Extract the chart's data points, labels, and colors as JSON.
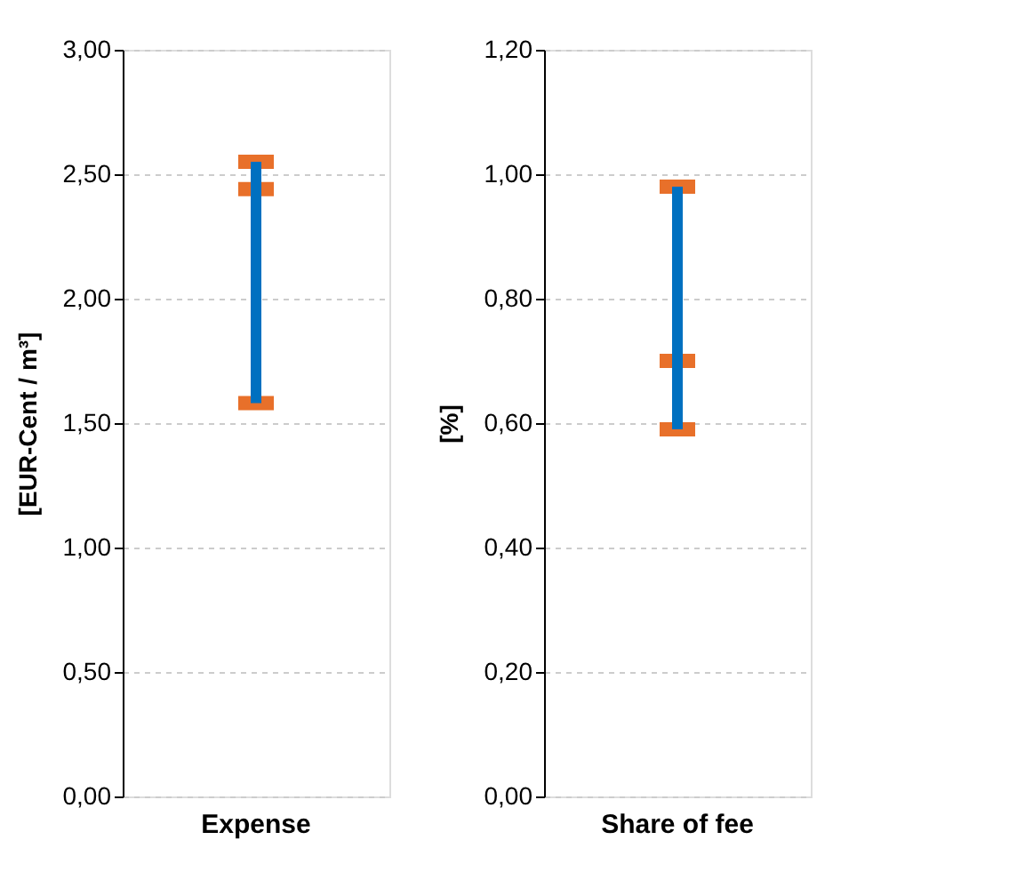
{
  "chart_data": [
    {
      "type": "bar",
      "ylabel": "[EUR-Cent / m³]",
      "categories": [
        "Expense"
      ],
      "ylim": [
        0,
        3
      ],
      "yticks": [
        {
          "value": 0,
          "label": "0,00"
        },
        {
          "value": 0.5,
          "label": "0,50"
        },
        {
          "value": 1,
          "label": "1,00"
        },
        {
          "value": 1.5,
          "label": "1,50"
        },
        {
          "value": 2,
          "label": "2,00"
        },
        {
          "value": 2.5,
          "label": "2,50"
        },
        {
          "value": 3,
          "label": "3,00"
        }
      ],
      "grid": "y",
      "series": [
        {
          "color": "#0070c0",
          "base": [
            1.58
          ],
          "values": [
            0.97
          ]
        },
        {
          "type": "scatter",
          "color": "#e8702a",
          "values": [
            2.55
          ]
        },
        {
          "type": "scatter",
          "color": "#e8702a",
          "values": [
            2.44
          ]
        },
        {
          "type": "scatter",
          "color": "#e8702a",
          "values": [
            1.58
          ]
        }
      ]
    },
    {
      "type": "bar",
      "ylabel": "[%]",
      "categories": [
        "Share of fee"
      ],
      "ylim": [
        0,
        1.2
      ],
      "yticks": [
        {
          "value": 0,
          "label": "0,00"
        },
        {
          "value": 0.2,
          "label": "0,20"
        },
        {
          "value": 0.4,
          "label": "0,40"
        },
        {
          "value": 0.6,
          "label": "0,60"
        },
        {
          "value": 0.8,
          "label": "0,80"
        },
        {
          "value": 1,
          "label": "1,00"
        },
        {
          "value": 1.2,
          "label": "1,20"
        }
      ],
      "grid": "y",
      "series": [
        {
          "color": "#0070c0",
          "base": [
            0.59
          ],
          "values": [
            0.39
          ]
        },
        {
          "type": "scatter",
          "color": "#e8702a",
          "values": [
            0.98
          ]
        },
        {
          "type": "scatter",
          "color": "#e8702a",
          "values": [
            0.7
          ]
        },
        {
          "type": "scatter",
          "color": "#e8702a",
          "values": [
            0.59
          ]
        }
      ]
    }
  ]
}
